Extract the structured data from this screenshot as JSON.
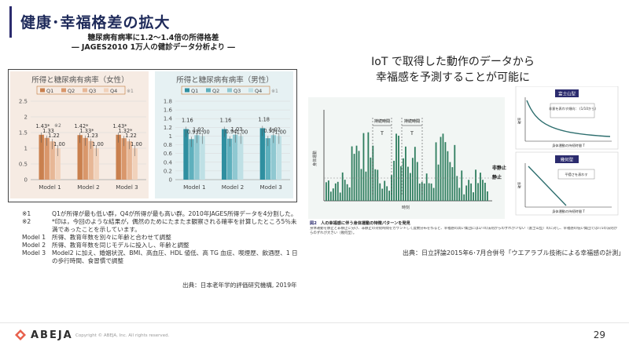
{
  "slide": {
    "title": "健康･幸福格差の拡大",
    "page_number": "29",
    "copyright": "Copyright © ABEJA, Inc. All rights reserved.",
    "logo_text": "ABEJA",
    "accent_color": "#2b2b6e"
  },
  "left": {
    "heading_1": "糖尿病有病率に1.2～1.4倍の所得格差",
    "heading_2": "― JAGES2010 1万人の健診データ分析より ―",
    "notes": [
      {
        "key": "※1",
        "text": "Q1が所得が最も低い群，Q4が所得が最も高い群。2010年JAGES所得データを4分割した。"
      },
      {
        "key": "※2",
        "text": "*印は，今回のような結果が，偶然のためにたまたま観察される確率を計算したところ5％未満であったことを示しています。"
      },
      {
        "key": "Model 1",
        "text": "所得、教育年数を別々に年齢と合わせて調整"
      },
      {
        "key": "Model 2",
        "text": "所得、教育年数を同じモデルに投入し、年齢と調整"
      },
      {
        "key": "Model 3",
        "text": "Model2 に加え、婚姻状況、BMI、高血圧、HDL 値低、高 TG 血症、喫煙歴、飲酒歴、1 日の歩行時間、食習慣で調整"
      }
    ],
    "source": "出典：日本老年学的評価研究機構, 2019年"
  },
  "right": {
    "heading_1": "IoT で取得した動作のデータから",
    "heading_2": "幸福感を予測することが可能に",
    "figure": {
      "y_axis_label": "身体運動",
      "x_axis_label": "時刻",
      "annotations": [
        "持続時間",
        "持続時間",
        "T",
        "T"
      ],
      "level_labels": [
        "非静止",
        "静止"
      ],
      "panel_1": {
        "title": "富士山型",
        "note": "非意を表わす傾向：\n(1/10から)",
        "x_label": "身体運動の持続時間 T"
      },
      "panel_2": {
        "title": "幾何型",
        "note": "平穏さを表わす",
        "x_label": "身体運動の持続時間 T"
      },
      "panel_y_label": "確率",
      "caption_label": "図2",
      "caption_title": "人の幸福感に伴う身体運動の特徴パターンを発見",
      "caption_body": "身体運動を静止と非静止に分け、非静止の持続時間をカウントして度数分布を作ると、幸福感の高い集団には1/Tの法則からのずれが少ない（富士山型）のに対し、幸福感の低い集団ではT/1の法則からのずれが大きい（幾何型）。"
    },
    "source": "出典：日立評論2015年6･7月合併号「ウエアラブル技術による幸福感の計測」"
  },
  "chart_data": [
    {
      "type": "bar",
      "title": "所得と糖尿病有病率（女性）",
      "categories": [
        "Model 1",
        "Model 2",
        "Model 3"
      ],
      "series": [
        {
          "name": "Q1",
          "values": [
            1.43,
            1.42,
            1.43
          ]
        },
        {
          "name": "Q2",
          "values": [
            1.33,
            1.33,
            1.32
          ]
        },
        {
          "name": "Q3",
          "values": [
            1.22,
            1.23,
            1.22
          ]
        },
        {
          "name": "Q4",
          "values": [
            1.0,
            1.0,
            1.0
          ]
        }
      ],
      "value_labels": [
        [
          "1.43*",
          "1.33",
          "1.22",
          "1.00"
        ],
        [
          "1.42*",
          "1.33*",
          "1.23",
          "1.00"
        ],
        [
          "1.43*",
          "1.32*",
          "1.22",
          "1.00"
        ]
      ],
      "annotations": [
        "※2",
        "※1"
      ],
      "ylim": [
        0,
        2.5
      ],
      "yticks": [
        "0",
        "0.5",
        "1",
        "1.5",
        "2",
        "2.5"
      ],
      "colors": [
        "#c9804e",
        "#d9976b",
        "#e7b796",
        "#f1d2bb"
      ],
      "legend": "top"
    },
    {
      "type": "bar",
      "title": "所得と糖尿病有病率（男性）",
      "categories": [
        "Model 1",
        "Model 2",
        "Model 3"
      ],
      "series": [
        {
          "name": "Q1",
          "values": [
            1.16,
            1.16,
            1.18
          ]
        },
        {
          "name": "Q2",
          "values": [
            0.93,
            0.94,
            0.95
          ]
        },
        {
          "name": "Q3",
          "values": [
            1.02,
            1.03,
            1.02
          ]
        },
        {
          "name": "Q4",
          "values": [
            1.0,
            1.0,
            1.0
          ]
        }
      ],
      "value_labels": [
        [
          "1.16",
          "0.93",
          "1.02",
          "1.00"
        ],
        [
          "1.16",
          "0.94",
          "1.03",
          "1.00"
        ],
        [
          "1.18",
          "0.95",
          "1.02",
          "1.00"
        ]
      ],
      "annotations": [
        "※1"
      ],
      "ylim": [
        0,
        1.8
      ],
      "yticks": [
        "0",
        "0.2",
        "0.4",
        "0.6",
        "0.8",
        "1",
        "1.2",
        "1.4",
        "1.6",
        "1.8"
      ],
      "colors": [
        "#2f8fa0",
        "#5fb0bd",
        "#8fc8d1",
        "#bfe0e5"
      ],
      "legend": "top"
    }
  ]
}
